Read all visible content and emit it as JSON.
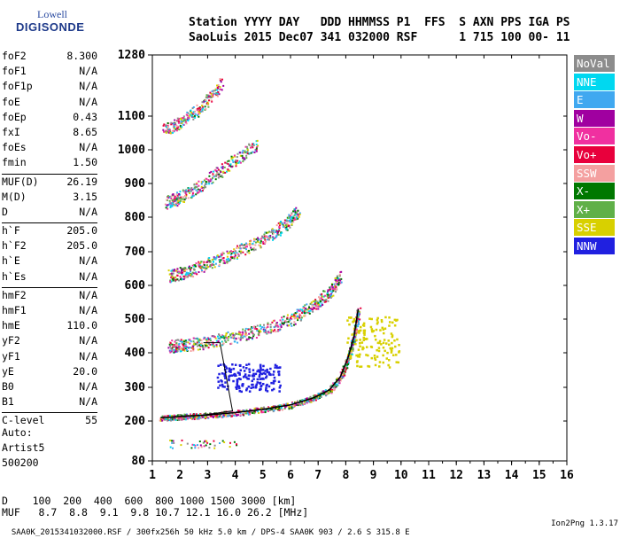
{
  "logo": {
    "line1": "Lowell",
    "line2": "DIGISONDE"
  },
  "header": {
    "row1": "Station YYYY DAY   DDD HHMMSS P1  FFS  S AXN PPS IGA PS",
    "row2": "SaoLuis 2015 Dec07 341 032000 RSF      1 715 100 00- 11"
  },
  "params": [
    {
      "k": "foF2",
      "v": "8.300"
    },
    {
      "k": "foF1",
      "v": "N/A"
    },
    {
      "k": "foF1p",
      "v": "N/A"
    },
    {
      "k": "foE",
      "v": "N/A"
    },
    {
      "k": "foEp",
      "v": "0.43"
    },
    {
      "k": "fxI",
      "v": "8.65"
    },
    {
      "k": "foEs",
      "v": "N/A"
    },
    {
      "k": "fmin",
      "v": "1.50"
    },
    {
      "k": "MUF(D)",
      "v": "26.19"
    },
    {
      "k": "M(D)",
      "v": "3.15"
    },
    {
      "k": "D",
      "v": "N/A"
    },
    {
      "k": "h`F",
      "v": "205.0"
    },
    {
      "k": "h`F2",
      "v": "205.0"
    },
    {
      "k": "h`E",
      "v": "N/A"
    },
    {
      "k": "h`Es",
      "v": "N/A"
    },
    {
      "k": "hmF2",
      "v": "N/A"
    },
    {
      "k": "hmF1",
      "v": "N/A"
    },
    {
      "k": "hmE",
      "v": "110.0"
    },
    {
      "k": "yF2",
      "v": "N/A"
    },
    {
      "k": "yF1",
      "v": "N/A"
    },
    {
      "k": "yE",
      "v": "20.0"
    },
    {
      "k": "B0",
      "v": "N/A"
    },
    {
      "k": "B1",
      "v": "N/A"
    },
    {
      "k": "C-level",
      "v": "55"
    }
  ],
  "extra": {
    "auto": "Auto:",
    "artist": "Artist5",
    "code": "500200"
  },
  "legend": [
    {
      "label": "NoVal",
      "color": "#8c8c8c"
    },
    {
      "label": "NNE",
      "color": "#00d8f0"
    },
    {
      "label": "E",
      "color": "#40a8f0"
    },
    {
      "label": "W",
      "color": "#a000a0"
    },
    {
      "label": "Vo-",
      "color": "#f030a0"
    },
    {
      "label": "Vo+",
      "color": "#e8003c"
    },
    {
      "label": "SSW",
      "color": "#f4a0a0"
    },
    {
      "label": "X-",
      "color": "#007800"
    },
    {
      "label": "X+",
      "color": "#60b048"
    },
    {
      "label": "SSE",
      "color": "#d8d000"
    },
    {
      "label": "NNW",
      "color": "#2020e0"
    }
  ],
  "chart_data": {
    "type": "scatter",
    "xlim": [
      1,
      16
    ],
    "ylim": [
      80,
      1280
    ],
    "x_ticks": [
      "1",
      "2",
      "3",
      "4",
      "5",
      "6",
      "7",
      "8",
      "9",
      "10",
      "11",
      "12",
      "13",
      "14",
      "15",
      "16"
    ],
    "y_ticks": [
      "80",
      "200",
      "300",
      "400",
      "500",
      "600",
      "700",
      "800",
      "900",
      "1000",
      "1100",
      "1280"
    ],
    "series": [
      {
        "x": [
          1.3,
          1.8,
          2.3,
          3.0,
          4.0,
          5.0,
          6.0,
          6.8,
          7.4,
          7.8,
          8.1,
          8.3,
          8.45
        ],
        "y": [
          210,
          212,
          215,
          218,
          225,
          235,
          248,
          268,
          292,
          330,
          390,
          450,
          530
        ]
      },
      {
        "x": [
          1.6,
          2.2,
          3.0,
          4.0,
          5.0,
          6.0,
          6.8,
          7.4,
          7.8
        ],
        "y": [
          420,
          425,
          432,
          450,
          470,
          500,
          540,
          580,
          630
        ]
      },
      {
        "x": [
          1.6,
          2.2,
          3.0,
          4.0,
          5.0,
          5.8,
          6.3
        ],
        "y": [
          630,
          640,
          665,
          700,
          735,
          780,
          820
        ]
      },
      {
        "x": [
          1.5,
          2.0,
          2.8,
          3.8,
          4.8
        ],
        "y": [
          845,
          860,
          900,
          960,
          1020
        ]
      },
      {
        "x": [
          1.4,
          2.0,
          2.8,
          3.5
        ],
        "y": [
          1060,
          1080,
          1130,
          1200
        ]
      }
    ],
    "muf_table": {
      "d_label": "D",
      "d": [
        "100",
        "200",
        "400",
        "600",
        "800",
        "1000",
        "1500",
        "3000"
      ],
      "d_unit": "[km]",
      "muf_label": "MUF",
      "muf": [
        "8.7",
        "8.8",
        "9.1",
        "9.8",
        "10.7",
        "12.1",
        "16.0",
        "26.2"
      ],
      "muf_unit": "[MHz]"
    }
  },
  "footer": {
    "left": "SAA0K_2015341032000.RSF / 300fx256h 50 kHz 5.0 km / DPS-4 SAA0K 903 / 2.6 S 315.8 E",
    "right": "Ion2Png 1.3.17"
  }
}
